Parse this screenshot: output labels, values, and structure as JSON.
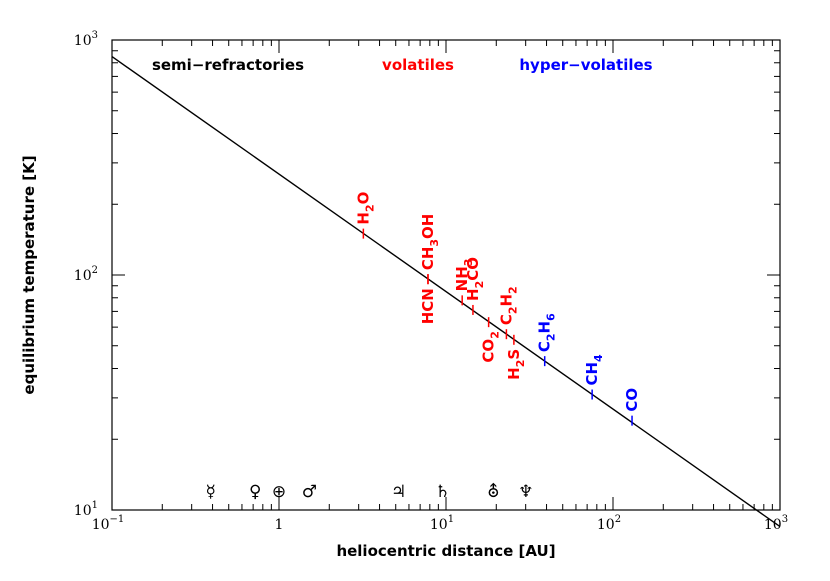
{
  "chart_data": {
    "type": "line",
    "title": "",
    "xlabel": "heliocentric distance [AU]",
    "ylabel": "equilibrium temperature [K]",
    "xscale": "log",
    "yscale": "log",
    "xlim": [
      0.1,
      1000
    ],
    "ylim": [
      10,
      1000
    ],
    "grid": false,
    "x_tick_labels": [
      {
        "base": "10",
        "exp": "−1"
      },
      {
        "base": "1",
        "exp": ""
      },
      {
        "base": "10",
        "exp": "1"
      },
      {
        "base": "10",
        "exp": "2"
      },
      {
        "base": "10",
        "exp": "3"
      }
    ],
    "y_tick_labels": [
      {
        "base": "10",
        "exp": "1"
      },
      {
        "base": "10",
        "exp": "2"
      },
      {
        "base": "10",
        "exp": "3"
      }
    ],
    "series": [
      {
        "x": [
          0.1,
          1000
        ],
        "y": [
          850,
          8.5
        ],
        "color": "#000000"
      }
    ],
    "category_labels": [
      {
        "text": "semi−refractories",
        "color": "#000000"
      },
      {
        "text": "volatiles",
        "color": "#ff0000"
      },
      {
        "text": "hyper−volatiles",
        "color": "#0000ff"
      }
    ],
    "molecules": [
      {
        "name": "H2O",
        "base": "H",
        "sub": "2",
        "rest": "O",
        "sub2": "",
        "rest2": "",
        "x": 3.2,
        "y": 150,
        "color": "#ff0000",
        "side": "above"
      },
      {
        "name": "CH3OH",
        "base": "CH",
        "sub": "3",
        "rest": "OH",
        "sub2": "",
        "rest2": "",
        "x": 7.8,
        "y": 96,
        "color": "#ff0000",
        "side": "above"
      },
      {
        "name": "HCN",
        "base": "HCN",
        "sub": "",
        "rest": "",
        "sub2": "",
        "rest2": "",
        "x": 7.8,
        "y": 96,
        "color": "#ff0000",
        "side": "below"
      },
      {
        "name": "NH3",
        "base": "NH",
        "sub": "3",
        "rest": "",
        "sub2": "",
        "rest2": "",
        "x": 12.5,
        "y": 78,
        "color": "#ff0000",
        "side": "above"
      },
      {
        "name": "H2CO",
        "base": "H",
        "sub": "2",
        "rest": "CO",
        "sub2": "",
        "rest2": "",
        "x": 14.5,
        "y": 71,
        "color": "#ff0000",
        "side": "above"
      },
      {
        "name": "CO2",
        "base": "CO",
        "sub": "2",
        "rest": "",
        "sub2": "",
        "rest2": "",
        "x": 18.0,
        "y": 63,
        "color": "#ff0000",
        "side": "below"
      },
      {
        "name": "C2H2",
        "base": "C",
        "sub": "2",
        "rest": "H",
        "sub2": "2",
        "rest2": "",
        "x": 23.0,
        "y": 56,
        "color": "#ff0000",
        "side": "above"
      },
      {
        "name": "H2S",
        "base": "H",
        "sub": "2",
        "rest": "S",
        "sub2": "",
        "rest2": "",
        "x": 25.5,
        "y": 53,
        "color": "#ff0000",
        "side": "below"
      },
      {
        "name": "C2H6",
        "base": "C",
        "sub": "2",
        "rest": "H",
        "sub2": "6",
        "rest2": "",
        "x": 39.0,
        "y": 43,
        "color": "#0000ff",
        "side": "above"
      },
      {
        "name": "CH4",
        "base": "CH",
        "sub": "4",
        "rest": "",
        "sub2": "",
        "rest2": "",
        "x": 75.0,
        "y": 31,
        "color": "#0000ff",
        "side": "above"
      },
      {
        "name": "CO",
        "base": "CO",
        "sub": "",
        "rest": "",
        "sub2": "",
        "rest2": "",
        "x": 130.0,
        "y": 24,
        "color": "#0000ff",
        "side": "above"
      }
    ],
    "planets": [
      {
        "name": "Mercury",
        "symbol": "☿",
        "x": 0.39
      },
      {
        "name": "Venus",
        "symbol": "♀",
        "x": 0.72
      },
      {
        "name": "Earth",
        "symbol": "⊕",
        "x": 1.0
      },
      {
        "name": "Mars",
        "symbol": "♂",
        "x": 1.52
      },
      {
        "name": "Jupiter",
        "symbol": "♃",
        "x": 5.2
      },
      {
        "name": "Saturn",
        "symbol": "♄",
        "x": 9.54
      },
      {
        "name": "Uranus",
        "symbol": "⛢",
        "x": 19.2
      },
      {
        "name": "Neptune",
        "symbol": "♆",
        "x": 30.1
      }
    ]
  }
}
